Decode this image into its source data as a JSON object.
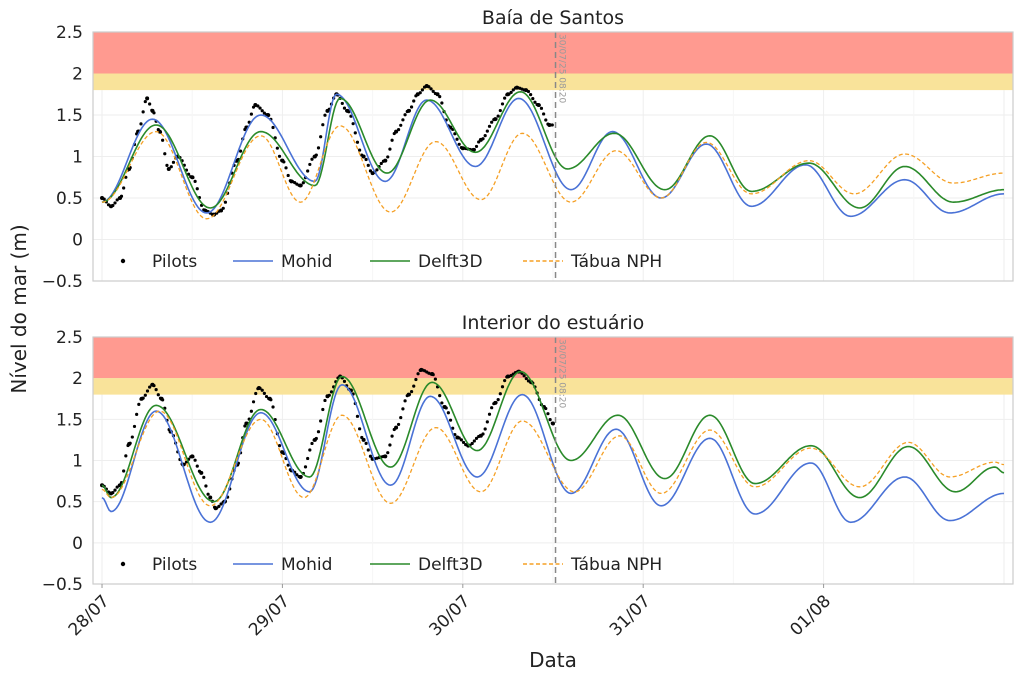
{
  "figure": {
    "ylabel": "Nível do mar (m)",
    "xlabel": "Data",
    "now_marker_label": "30/07/25 08:20"
  },
  "colors": {
    "red_band": "#ff9a90",
    "yellow_band": "#f9e39a",
    "pilots": "#000000",
    "mohid": "#4a72d6",
    "delft3d": "#2a8a2a",
    "tabua": "#f5a025",
    "grid": "#eeeeee",
    "frame": "#cccccc",
    "marker": "#888888"
  },
  "chart_data": [
    {
      "type": "line",
      "title": "Baía de Santos",
      "x_unit": "days since 28/07 00:00",
      "xlim": [
        -0.05,
        5.05
      ],
      "ylim": [
        -0.5,
        2.5
      ],
      "yticks": [
        "2.5",
        "2",
        "1.5",
        "1",
        "0.5",
        "0",
        "−0.5"
      ],
      "xticks": [
        "28/07",
        "29/07",
        "30/07",
        "31/07",
        "01/08"
      ],
      "bands": [
        {
          "from": 2.0,
          "to": 2.5,
          "color": "red"
        },
        {
          "from": 1.8,
          "to": 2.0,
          "color": "yellow"
        }
      ],
      "now_marker_x": 2.514,
      "legend": [
        "Pilots",
        "Mohid",
        "Delft3D",
        "Tábua NPH"
      ],
      "legend_position": "lower-left",
      "series": [
        {
          "name": "Pilots",
          "style": "points",
          "x_range": [
            0.0,
            2.5
          ],
          "points": [
            [
              0,
              0.5
            ],
            [
              0.05,
              0.4
            ],
            [
              0.1,
              0.5
            ],
            [
              0.15,
              0.85
            ],
            [
              0.2,
              1.3
            ],
            [
              0.25,
              1.7
            ],
            [
              0.28,
              1.55
            ],
            [
              0.32,
              1.3
            ],
            [
              0.37,
              0.85
            ],
            [
              0.42,
              1.0
            ],
            [
              0.5,
              0.75
            ],
            [
              0.57,
              0.35
            ],
            [
              0.62,
              0.3
            ],
            [
              0.66,
              0.35
            ],
            [
              0.75,
              0.95
            ],
            [
              0.8,
              1.35
            ],
            [
              0.85,
              1.62
            ],
            [
              0.92,
              1.5
            ],
            [
              1.0,
              0.95
            ],
            [
              1.05,
              0.7
            ],
            [
              1.1,
              0.65
            ],
            [
              1.18,
              1.0
            ],
            [
              1.25,
              1.55
            ],
            [
              1.3,
              1.75
            ],
            [
              1.36,
              1.55
            ],
            [
              1.45,
              1.0
            ],
            [
              1.5,
              0.8
            ],
            [
              1.57,
              0.95
            ],
            [
              1.63,
              1.3
            ],
            [
              1.7,
              1.55
            ],
            [
              1.75,
              1.75
            ],
            [
              1.8,
              1.85
            ],
            [
              1.86,
              1.75
            ],
            [
              1.93,
              1.35
            ],
            [
              2.0,
              1.1
            ],
            [
              2.06,
              1.08
            ],
            [
              2.1,
              1.2
            ],
            [
              2.18,
              1.45
            ],
            [
              2.25,
              1.75
            ],
            [
              2.3,
              1.83
            ],
            [
              2.35,
              1.8
            ],
            [
              2.42,
              1.62
            ],
            [
              2.48,
              1.38
            ]
          ]
        },
        {
          "name": "Mohid",
          "style": "solid",
          "x_range": [
            0.0,
            5.0
          ],
          "mean": 0.95,
          "amplitude": 0.55,
          "phase": 0.3,
          "envelope": [
            [
              0,
              0.45
            ],
            [
              0.28,
              1.45
            ],
            [
              0.58,
              0.32
            ],
            [
              0.88,
              1.5
            ],
            [
              1.18,
              0.7
            ],
            [
              1.3,
              1.75
            ],
            [
              1.57,
              0.7
            ],
            [
              1.8,
              1.68
            ],
            [
              2.07,
              0.88
            ],
            [
              2.31,
              1.7
            ],
            [
              2.6,
              0.6
            ],
            [
              2.83,
              1.3
            ],
            [
              3.1,
              0.5
            ],
            [
              3.35,
              1.15
            ],
            [
              3.6,
              0.4
            ],
            [
              3.9,
              0.9
            ],
            [
              4.15,
              0.28
            ],
            [
              4.45,
              0.72
            ],
            [
              4.7,
              0.32
            ],
            [
              5.0,
              0.55
            ]
          ]
        },
        {
          "name": "Delft3D",
          "style": "solid",
          "x_range": [
            0.0,
            5.0
          ],
          "envelope": [
            [
              0,
              0.45
            ],
            [
              0.3,
              1.38
            ],
            [
              0.6,
              0.38
            ],
            [
              0.88,
              1.3
            ],
            [
              1.18,
              0.65
            ],
            [
              1.32,
              1.7
            ],
            [
              1.58,
              0.8
            ],
            [
              1.82,
              1.68
            ],
            [
              2.07,
              1.05
            ],
            [
              2.32,
              1.78
            ],
            [
              2.58,
              0.85
            ],
            [
              2.84,
              1.28
            ],
            [
              3.12,
              0.6
            ],
            [
              3.37,
              1.25
            ],
            [
              3.6,
              0.58
            ],
            [
              3.92,
              0.92
            ],
            [
              4.2,
              0.38
            ],
            [
              4.45,
              0.88
            ],
            [
              4.72,
              0.45
            ],
            [
              5.0,
              0.6
            ]
          ]
        },
        {
          "name": "Tábua NPH",
          "style": "dashed",
          "x_range": [
            0.0,
            5.0
          ],
          "envelope": [
            [
              0,
              0.45
            ],
            [
              0.3,
              1.3
            ],
            [
              0.58,
              0.25
            ],
            [
              0.88,
              1.25
            ],
            [
              1.1,
              0.45
            ],
            [
              1.32,
              1.37
            ],
            [
              1.6,
              0.33
            ],
            [
              1.85,
              1.18
            ],
            [
              2.1,
              0.48
            ],
            [
              2.33,
              1.28
            ],
            [
              2.6,
              0.45
            ],
            [
              2.85,
              1.07
            ],
            [
              3.1,
              0.5
            ],
            [
              3.35,
              1.17
            ],
            [
              3.6,
              0.55
            ],
            [
              3.92,
              0.95
            ],
            [
              4.17,
              0.55
            ],
            [
              4.45,
              1.03
            ],
            [
              4.72,
              0.68
            ],
            [
              5.0,
              0.8
            ]
          ]
        }
      ]
    },
    {
      "type": "line",
      "title": "Interior do estuário",
      "x_unit": "days since 28/07 00:00",
      "xlim": [
        -0.05,
        5.05
      ],
      "ylim": [
        -0.5,
        2.5
      ],
      "yticks": [
        "2.5",
        "2",
        "1.5",
        "1",
        "0.5",
        "0",
        "−0.5"
      ],
      "xticks": [
        "28/07",
        "29/07",
        "30/07",
        "31/07",
        "01/08"
      ],
      "bands": [
        {
          "from": 2.0,
          "to": 2.5,
          "color": "red"
        },
        {
          "from": 1.8,
          "to": 2.0,
          "color": "yellow"
        }
      ],
      "now_marker_x": 2.514,
      "legend": [
        "Pilots",
        "Mohid",
        "Delft3D",
        "Tábua NPH"
      ],
      "legend_position": "lower-left",
      "series": [
        {
          "name": "Pilots",
          "style": "points",
          "x_range": [
            0.0,
            2.5
          ],
          "points": [
            [
              0,
              0.7
            ],
            [
              0.05,
              0.6
            ],
            [
              0.1,
              0.7
            ],
            [
              0.15,
              1.2
            ],
            [
              0.22,
              1.75
            ],
            [
              0.28,
              1.92
            ],
            [
              0.33,
              1.75
            ],
            [
              0.38,
              1.35
            ],
            [
              0.45,
              0.95
            ],
            [
              0.5,
              1.05
            ],
            [
              0.55,
              0.85
            ],
            [
              0.6,
              0.55
            ],
            [
              0.63,
              0.42
            ],
            [
              0.68,
              0.5
            ],
            [
              0.75,
              0.95
            ],
            [
              0.8,
              1.45
            ],
            [
              0.87,
              1.88
            ],
            [
              0.93,
              1.75
            ],
            [
              1.0,
              1.1
            ],
            [
              1.05,
              0.88
            ],
            [
              1.1,
              0.8
            ],
            [
              1.18,
              1.25
            ],
            [
              1.25,
              1.78
            ],
            [
              1.32,
              2.02
            ],
            [
              1.38,
              1.85
            ],
            [
              1.45,
              1.25
            ],
            [
              1.5,
              1.02
            ],
            [
              1.57,
              1.05
            ],
            [
              1.63,
              1.4
            ],
            [
              1.7,
              1.8
            ],
            [
              1.77,
              2.1
            ],
            [
              1.83,
              2.05
            ],
            [
              1.9,
              1.65
            ],
            [
              1.97,
              1.28
            ],
            [
              2.03,
              1.18
            ],
            [
              2.1,
              1.3
            ],
            [
              2.18,
              1.7
            ],
            [
              2.25,
              2.02
            ],
            [
              2.31,
              2.08
            ],
            [
              2.38,
              1.95
            ],
            [
              2.45,
              1.65
            ],
            [
              2.5,
              1.45
            ]
          ]
        },
        {
          "name": "Mohid",
          "style": "solid",
          "x_range": [
            0.0,
            5.0
          ],
          "envelope": [
            [
              0,
              0.55
            ],
            [
              0.05,
              0.38
            ],
            [
              0.3,
              1.6
            ],
            [
              0.6,
              0.25
            ],
            [
              0.88,
              1.58
            ],
            [
              1.15,
              0.62
            ],
            [
              1.33,
              1.92
            ],
            [
              1.6,
              0.7
            ],
            [
              1.82,
              1.78
            ],
            [
              2.08,
              0.8
            ],
            [
              2.33,
              1.8
            ],
            [
              2.6,
              0.6
            ],
            [
              2.85,
              1.38
            ],
            [
              3.1,
              0.45
            ],
            [
              3.37,
              1.27
            ],
            [
              3.62,
              0.35
            ],
            [
              3.93,
              0.97
            ],
            [
              4.15,
              0.25
            ],
            [
              4.45,
              0.8
            ],
            [
              4.7,
              0.27
            ],
            [
              5.0,
              0.6
            ]
          ]
        },
        {
          "name": "Delft3D",
          "style": "solid",
          "x_range": [
            0.0,
            5.0
          ],
          "envelope": [
            [
              0,
              0.7
            ],
            [
              0.05,
              0.55
            ],
            [
              0.3,
              1.67
            ],
            [
              0.62,
              0.5
            ],
            [
              0.88,
              1.62
            ],
            [
              1.15,
              0.8
            ],
            [
              1.33,
              2.02
            ],
            [
              1.6,
              0.92
            ],
            [
              1.83,
              1.95
            ],
            [
              2.08,
              1.12
            ],
            [
              2.32,
              2.08
            ],
            [
              2.6,
              1.0
            ],
            [
              2.86,
              1.55
            ],
            [
              3.12,
              0.78
            ],
            [
              3.37,
              1.55
            ],
            [
              3.62,
              0.72
            ],
            [
              3.93,
              1.18
            ],
            [
              4.2,
              0.55
            ],
            [
              4.47,
              1.17
            ],
            [
              4.73,
              0.62
            ],
            [
              4.95,
              0.92
            ],
            [
              5.0,
              0.85
            ]
          ]
        },
        {
          "name": "Tábua NPH",
          "style": "dashed",
          "x_range": [
            0.0,
            5.0
          ],
          "envelope": [
            [
              0,
              0.65
            ],
            [
              0.05,
              0.55
            ],
            [
              0.32,
              1.6
            ],
            [
              0.6,
              0.45
            ],
            [
              0.88,
              1.5
            ],
            [
              1.12,
              0.55
            ],
            [
              1.33,
              1.55
            ],
            [
              1.6,
              0.48
            ],
            [
              1.85,
              1.4
            ],
            [
              2.1,
              0.62
            ],
            [
              2.33,
              1.48
            ],
            [
              2.62,
              0.62
            ],
            [
              2.87,
              1.3
            ],
            [
              3.1,
              0.6
            ],
            [
              3.37,
              1.37
            ],
            [
              3.62,
              0.68
            ],
            [
              3.93,
              1.15
            ],
            [
              4.2,
              0.68
            ],
            [
              4.47,
              1.22
            ],
            [
              4.7,
              0.8
            ],
            [
              4.95,
              0.98
            ],
            [
              5.0,
              0.95
            ]
          ]
        }
      ]
    }
  ]
}
